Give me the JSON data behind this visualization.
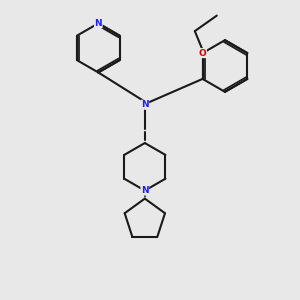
{
  "bg": "#e8e8e8",
  "bond_color": "#1a1a1a",
  "N_color": "#2020ee",
  "O_color": "#cc0000",
  "lw": 1.5,
  "fs": 6.5,
  "xlim": [
    -4.5,
    5.5
  ],
  "ylim": [
    -2.5,
    9.0
  ],
  "figsize": [
    3.0,
    3.0
  ],
  "dpi": 100
}
